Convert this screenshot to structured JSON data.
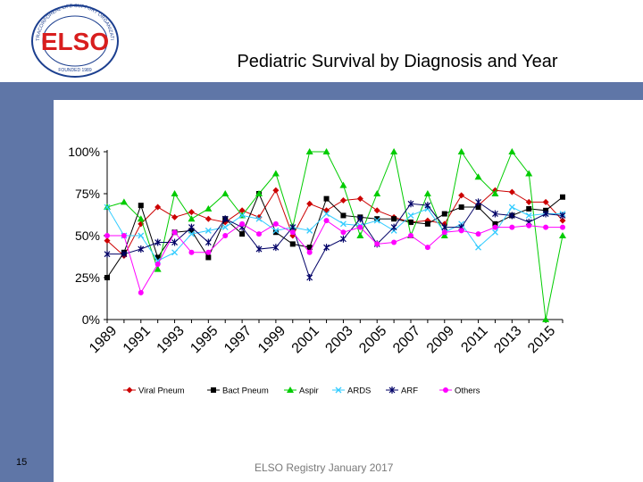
{
  "slide": {
    "title": "Pediatric Survival by Diagnosis and Year",
    "slide_number": "15",
    "footer": "ELSO Registry January 2017",
    "logo_text": "EXTRACORPOREAL LIFE SUPPORT ORGANIZATION",
    "logo_letters": "ELSO",
    "logo_subtext": "FOUNDED 1989",
    "band_color": "#5f76a7"
  },
  "chart_data": {
    "type": "line",
    "title": "",
    "xlabel": "",
    "ylabel": "",
    "ylim": [
      0,
      100
    ],
    "yticks": [
      0,
      25,
      50,
      75,
      100
    ],
    "ytick_labels": [
      "0%",
      "25%",
      "50%",
      "75%",
      "100%"
    ],
    "x": [
      1989,
      1990,
      1991,
      1992,
      1993,
      1994,
      1995,
      1996,
      1997,
      1998,
      1999,
      2000,
      2001,
      2002,
      2003,
      2004,
      2005,
      2006,
      2007,
      2008,
      2009,
      2010,
      2011,
      2012,
      2013,
      2014,
      2015,
      2016
    ],
    "xtick_labels": [
      "1989",
      "1991",
      "1993",
      "1995",
      "1997",
      "1999",
      "2001",
      "2003",
      "2005",
      "2007",
      "2009",
      "2011",
      "2013",
      "2015"
    ],
    "legend_position": "bottom",
    "series": [
      {
        "name": "Viral Pneum",
        "color": "#cc0000",
        "marker": "diamond",
        "values": [
          47,
          38,
          57,
          67,
          61,
          64,
          60,
          58,
          65,
          61,
          77,
          50,
          69,
          65,
          71,
          72,
          65,
          61,
          58,
          59,
          57,
          74,
          68,
          77,
          76,
          70,
          70,
          59
        ]
      },
      {
        "name": "Bact Pneum",
        "color": "#000000",
        "marker": "square",
        "values": [
          25,
          40,
          68,
          37,
          52,
          53,
          37,
          60,
          51,
          75,
          52,
          45,
          43,
          72,
          62,
          61,
          60,
          60,
          58,
          57,
          63,
          67,
          67,
          57,
          62,
          66,
          65,
          73
        ]
      },
      {
        "name": "Aspir",
        "color": "#00cc00",
        "marker": "triangle",
        "values": [
          67,
          70,
          60,
          30,
          75,
          60,
          66,
          75,
          62,
          75,
          87,
          55,
          100,
          100,
          80,
          50,
          75,
          100,
          50,
          75,
          50,
          100,
          85,
          75,
          100,
          87,
          0,
          50
        ]
      },
      {
        "name": "ARDS",
        "color": "#33ccff",
        "marker": "x",
        "values": [
          67,
          50,
          50,
          35,
          40,
          51,
          53,
          55,
          62,
          60,
          53,
          55,
          53,
          63,
          57,
          56,
          59,
          53,
          62,
          66,
          52,
          57,
          43,
          52,
          67,
          62,
          63,
          63
        ]
      },
      {
        "name": "ARF",
        "color": "#000066",
        "marker": "star",
        "values": [
          39,
          39,
          42,
          46,
          46,
          55,
          46,
          60,
          55,
          42,
          43,
          55,
          25,
          43,
          48,
          60,
          45,
          55,
          69,
          68,
          55,
          55,
          70,
          63,
          62,
          58,
          63,
          62
        ]
      },
      {
        "name": "Others",
        "color": "#ff00ff",
        "marker": "circle",
        "values": [
          50,
          50,
          16,
          33,
          52,
          40,
          40,
          50,
          57,
          51,
          57,
          52,
          40,
          59,
          52,
          55,
          45,
          46,
          50,
          43,
          52,
          53,
          51,
          55,
          55,
          56,
          55,
          55
        ]
      }
    ]
  }
}
